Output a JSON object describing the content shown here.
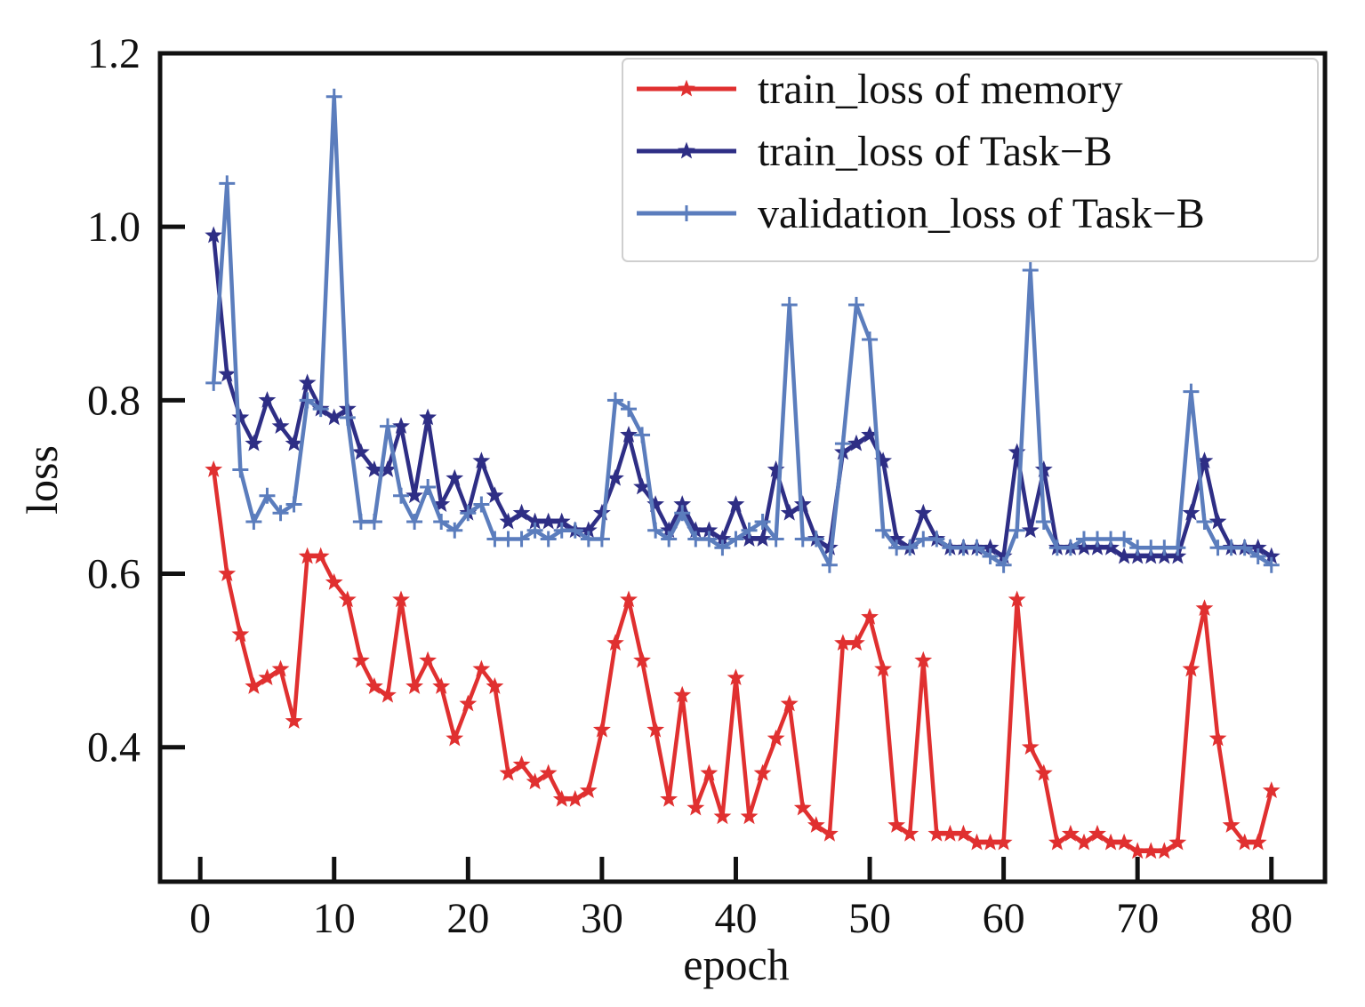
{
  "chart_data": {
    "type": "line",
    "title": "",
    "xlabel": "epoch",
    "ylabel": "loss",
    "xlim": [
      -3,
      84
    ],
    "ylim": [
      0.245,
      1.2
    ],
    "xticks": [
      0,
      10,
      20,
      30,
      40,
      50,
      60,
      70,
      80
    ],
    "yticks": [
      0.4,
      0.6,
      0.8,
      1.0,
      1.2
    ],
    "xtick_labels": [
      "0",
      "10",
      "20",
      "30",
      "40",
      "50",
      "60",
      "70",
      "80"
    ],
    "ytick_labels": [
      "0.4",
      "0.6",
      "0.8",
      "1.0",
      "1.2"
    ],
    "grid": false,
    "legend_position": "top-right",
    "x": [
      1,
      2,
      3,
      4,
      5,
      6,
      7,
      8,
      9,
      10,
      11,
      12,
      13,
      14,
      15,
      16,
      17,
      18,
      19,
      20,
      21,
      22,
      23,
      24,
      25,
      26,
      27,
      28,
      29,
      30,
      31,
      32,
      33,
      34,
      35,
      36,
      37,
      38,
      39,
      40,
      41,
      42,
      43,
      44,
      45,
      46,
      47,
      48,
      49,
      50,
      51,
      52,
      53,
      54,
      55,
      56,
      57,
      58,
      59,
      60,
      61,
      62,
      63,
      64,
      65,
      66,
      67,
      68,
      69,
      70,
      71,
      72,
      73,
      74,
      75,
      76,
      77,
      78,
      79,
      80
    ],
    "series": [
      {
        "name": "train_loss of memory",
        "color": "#e03030",
        "marker": "star",
        "values": [
          0.72,
          0.6,
          0.53,
          0.47,
          0.48,
          0.49,
          0.43,
          0.62,
          0.62,
          0.59,
          0.57,
          0.5,
          0.47,
          0.46,
          0.57,
          0.47,
          0.5,
          0.47,
          0.41,
          0.45,
          0.49,
          0.47,
          0.37,
          0.38,
          0.36,
          0.37,
          0.34,
          0.34,
          0.35,
          0.42,
          0.52,
          0.57,
          0.5,
          0.42,
          0.34,
          0.46,
          0.33,
          0.37,
          0.32,
          0.48,
          0.32,
          0.37,
          0.41,
          0.45,
          0.33,
          0.31,
          0.3,
          0.52,
          0.52,
          0.55,
          0.49,
          0.31,
          0.3,
          0.5,
          0.3,
          0.3,
          0.3,
          0.29,
          0.29,
          0.29,
          0.57,
          0.4,
          0.37,
          0.29,
          0.3,
          0.29,
          0.3,
          0.29,
          0.29,
          0.28,
          0.28,
          0.28,
          0.29,
          0.49,
          0.56,
          0.41,
          0.31,
          0.29,
          0.29,
          0.35
        ]
      },
      {
        "name": "train_loss of Task−B",
        "color": "#2e2e85",
        "marker": "star",
        "values": [
          0.99,
          0.83,
          0.78,
          0.75,
          0.8,
          0.77,
          0.75,
          0.82,
          0.79,
          0.78,
          0.79,
          0.74,
          0.72,
          0.72,
          0.77,
          0.69,
          0.78,
          0.68,
          0.71,
          0.67,
          0.73,
          0.69,
          0.66,
          0.67,
          0.66,
          0.66,
          0.66,
          0.65,
          0.65,
          0.67,
          0.71,
          0.76,
          0.7,
          0.68,
          0.65,
          0.68,
          0.65,
          0.65,
          0.64,
          0.68,
          0.64,
          0.64,
          0.72,
          0.67,
          0.68,
          0.64,
          0.63,
          0.74,
          0.75,
          0.76,
          0.73,
          0.64,
          0.63,
          0.67,
          0.64,
          0.63,
          0.63,
          0.63,
          0.63,
          0.62,
          0.74,
          0.65,
          0.72,
          0.63,
          0.63,
          0.63,
          0.63,
          0.63,
          0.62,
          0.62,
          0.62,
          0.62,
          0.62,
          0.67,
          0.73,
          0.66,
          0.63,
          0.63,
          0.63,
          0.62
        ]
      },
      {
        "name": "validation_loss of Task−B",
        "color": "#5b7dbd",
        "marker": "plus",
        "values": [
          0.82,
          1.05,
          0.72,
          0.66,
          0.69,
          0.67,
          0.68,
          0.8,
          0.79,
          1.15,
          0.78,
          0.66,
          0.66,
          0.77,
          0.69,
          0.66,
          0.7,
          0.66,
          0.65,
          0.67,
          0.68,
          0.64,
          0.64,
          0.64,
          0.65,
          0.64,
          0.65,
          0.65,
          0.64,
          0.64,
          0.8,
          0.79,
          0.76,
          0.65,
          0.64,
          0.67,
          0.64,
          0.64,
          0.63,
          0.64,
          0.65,
          0.66,
          0.64,
          0.91,
          0.64,
          0.64,
          0.61,
          0.75,
          0.91,
          0.87,
          0.65,
          0.63,
          0.63,
          0.64,
          0.64,
          0.63,
          0.63,
          0.63,
          0.62,
          0.61,
          0.65,
          0.95,
          0.66,
          0.63,
          0.63,
          0.64,
          0.64,
          0.64,
          0.64,
          0.63,
          0.63,
          0.63,
          0.63,
          0.81,
          0.66,
          0.63,
          0.63,
          0.63,
          0.62,
          0.61
        ]
      }
    ]
  }
}
